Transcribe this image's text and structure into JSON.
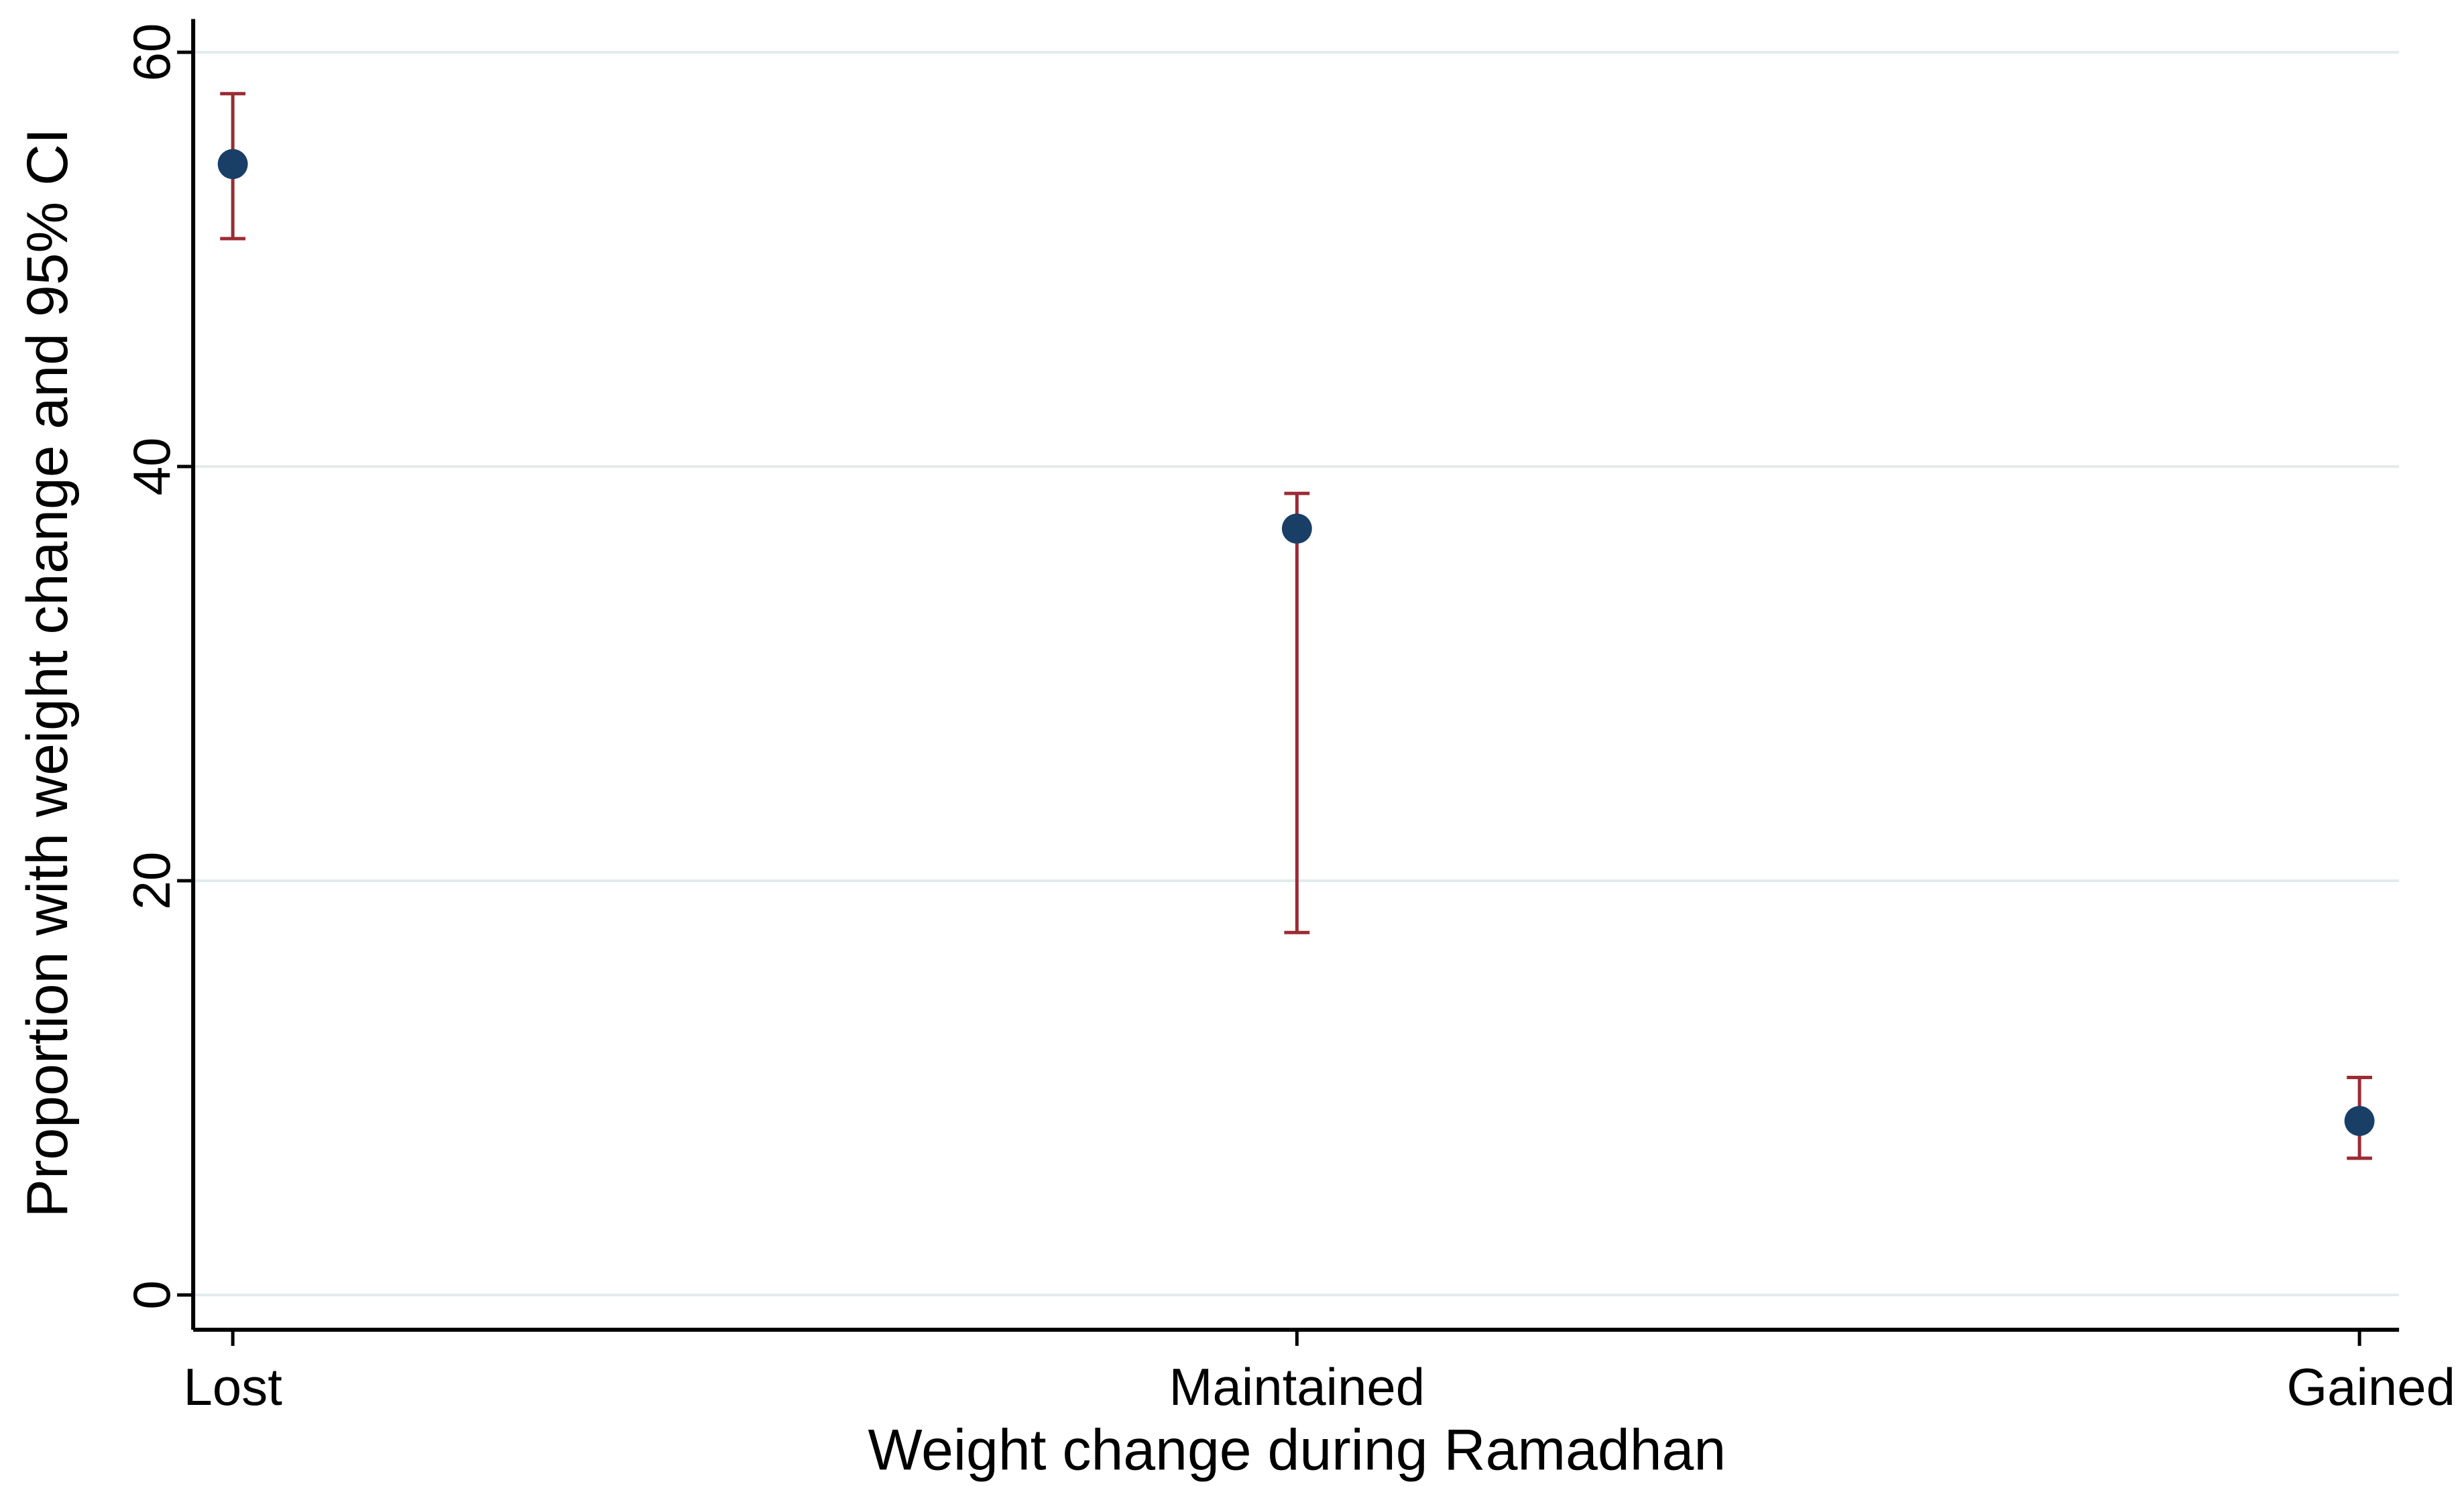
{
  "chart_data": {
    "type": "scatter",
    "title": "",
    "xlabel": "Weight change during Ramadhan",
    "ylabel": "Proportion with weight change and 95% CI",
    "categories": [
      "Lost",
      "Maintained",
      "Gained"
    ],
    "ylim": [
      0,
      60
    ],
    "yticks": [
      0,
      20,
      40,
      60
    ],
    "grid": true,
    "legend": "none",
    "series": [
      {
        "values": [
          54.6,
          37.0,
          8.4
        ],
        "ci_lower": [
          51.0,
          17.5,
          6.6
        ],
        "ci_upper": [
          58.0,
          38.7,
          10.5
        ]
      }
    ],
    "colors": {
      "point": "#1a3f66",
      "error_bar": "#9b2b34",
      "grid": "#e3ecec",
      "axis": "#000000"
    }
  }
}
